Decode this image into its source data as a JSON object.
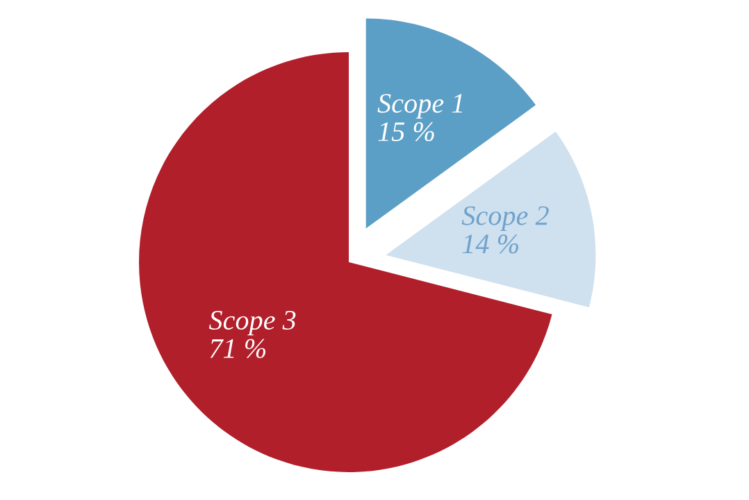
{
  "chart_data": {
    "type": "pie",
    "categories": [
      "Scope 1",
      "Scope 2",
      "Scope 3"
    ],
    "values": [
      15,
      14,
      71
    ],
    "colors": [
      "#5b9fc6",
      "#cfe0ee",
      "#b11f2b"
    ],
    "value_labels": [
      "15 %",
      "14 %",
      "71 %"
    ]
  }
}
